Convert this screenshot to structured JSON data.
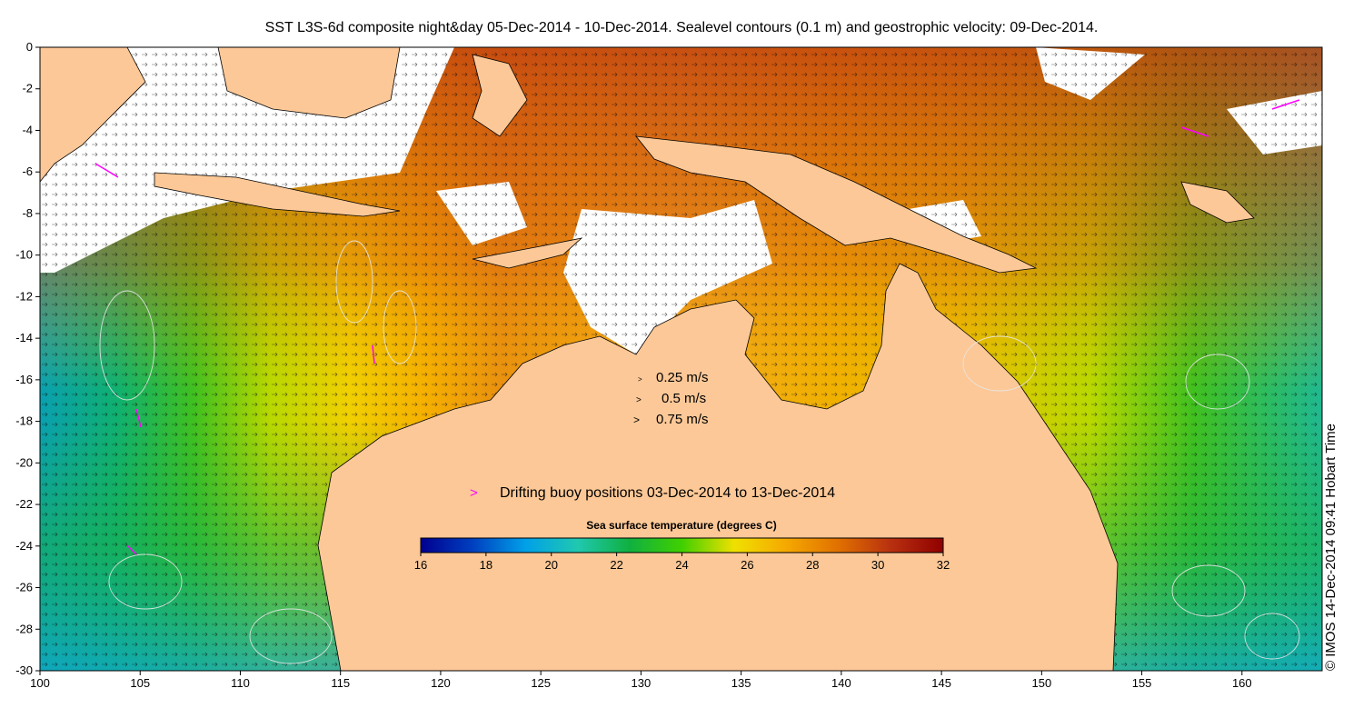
{
  "title": "SST L3S-6d composite night&day 05-Dec-2014 - 10-Dec-2014. Sealevel contours (0.1 m) and geostrophic velocity: 09-Dec-2014.",
  "map": {
    "lon_range": [
      100,
      164
    ],
    "lat_range": [
      -30,
      0
    ],
    "x_ticks": [
      100,
      105,
      110,
      115,
      120,
      125,
      130,
      135,
      140,
      145,
      150,
      155,
      160
    ],
    "y_ticks": [
      0,
      -2,
      -4,
      -6,
      -8,
      -10,
      -12,
      -14,
      -16,
      -18,
      -20,
      -22,
      -24,
      -26,
      -28,
      -30
    ],
    "land_color": "#fcc897",
    "no_data_color": "#ffffff"
  },
  "velocity_legend": [
    {
      "label": "0.25 m/s"
    },
    {
      "label": "0.5 m/s"
    },
    {
      "label": "0.75 m/s"
    }
  ],
  "buoy_legend": {
    "label": "Drifting buoy positions 03-Dec-2014 to 13-Dec-2014",
    "color": "#ff00ff",
    "symbol": ">"
  },
  "colorbar": {
    "title": "Sea surface temperature (degrees C)",
    "min": 16,
    "max": 32,
    "ticks": [
      16,
      18,
      20,
      22,
      24,
      26,
      28,
      30,
      32
    ],
    "colors": [
      "#00008f",
      "#0040c0",
      "#00a0e8",
      "#20c8b0",
      "#10b040",
      "#40d000",
      "#f0e000",
      "#f5a800",
      "#e07000",
      "#b83010",
      "#900000"
    ]
  },
  "credit": "© IMOS 14-Dec-2014 09:41 Hobart Time"
}
